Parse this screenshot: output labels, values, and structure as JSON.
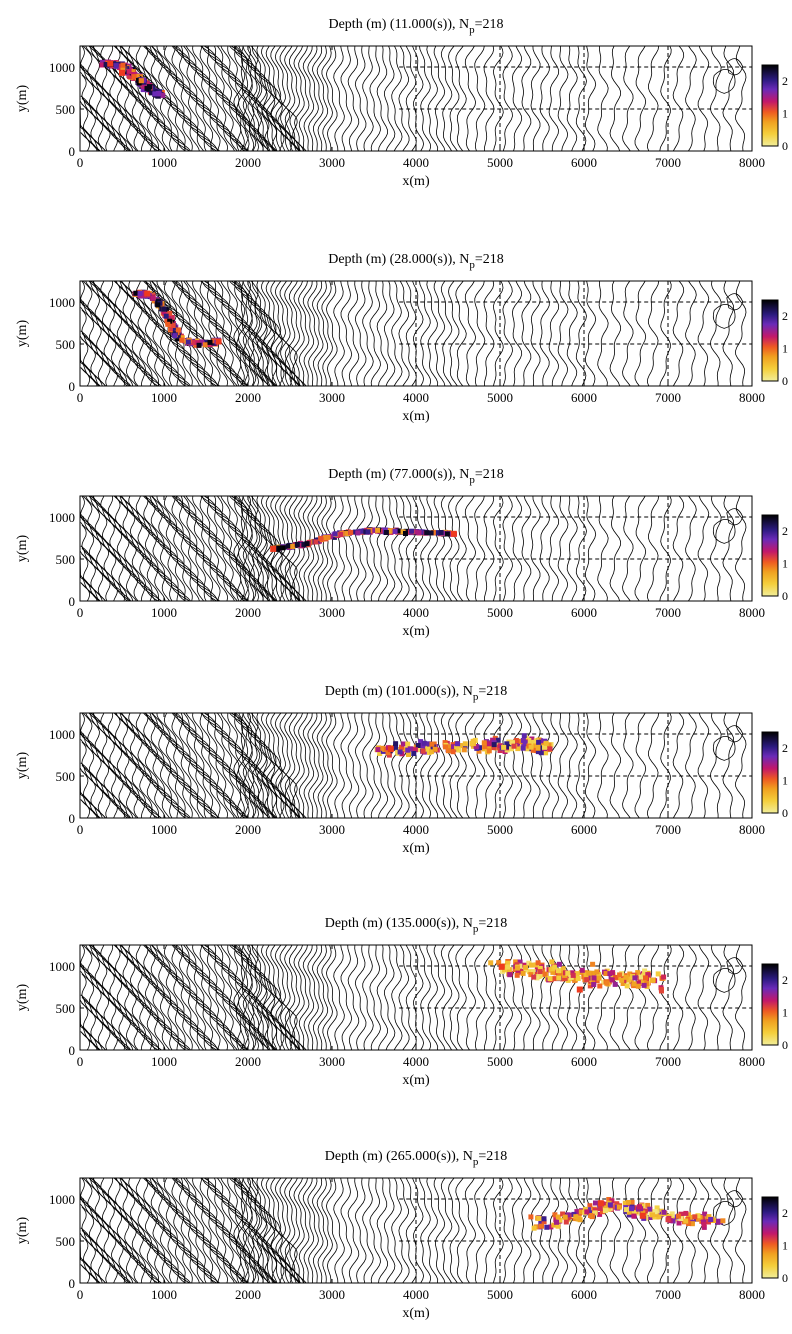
{
  "figure": {
    "title_prefix": "Depth (m) (",
    "title_mid": "), N",
    "title_sub": "p",
    "title_suffix": "=218"
  },
  "chart_data": [
    {
      "type": "scatter",
      "title": "Depth (m) (11.000(s)), Np=218",
      "time": "11.000(s)",
      "xlabel": "x(m)",
      "ylabel": "y(m)",
      "xlim": [
        0,
        8000
      ],
      "ylim": [
        0,
        1250
      ],
      "xticks": [
        0,
        1000,
        2000,
        3000,
        4000,
        5000,
        6000,
        7000,
        8000
      ],
      "yticks": [
        0,
        500,
        1000
      ],
      "grid": "dashed",
      "colorbar": {
        "ticks": [
          0,
          1,
          2
        ],
        "range": [
          0,
          2.5
        ],
        "placement": "right"
      },
      "particles": {
        "count": 218,
        "spread": 50,
        "depth_range": [
          0.8,
          2.5
        ],
        "path": [
          [
            300,
            1040
          ],
          [
            500,
            1020
          ],
          [
            650,
            900
          ],
          [
            800,
            760
          ],
          [
            950,
            660
          ]
        ],
        "hotspots": [
          [
            500,
            930
          ],
          [
            360,
            1040
          ]
        ]
      }
    },
    {
      "type": "scatter",
      "title": "Depth (m) (28.000(s)), Np=218",
      "time": "28.000(s)",
      "xlabel": "x(m)",
      "ylabel": "y(m)",
      "xlim": [
        0,
        8000
      ],
      "ylim": [
        0,
        1250
      ],
      "xticks": [
        0,
        1000,
        2000,
        3000,
        4000,
        5000,
        6000,
        7000,
        8000
      ],
      "yticks": [
        0,
        500,
        1000
      ],
      "grid": "dashed",
      "colorbar": {
        "ticks": [
          0,
          1,
          2
        ],
        "range": [
          0,
          2.5
        ],
        "placement": "right"
      },
      "particles": {
        "count": 218,
        "spread": 40,
        "depth_range": [
          0.6,
          2.5
        ],
        "path": [
          [
            650,
            1100
          ],
          [
            850,
            1080
          ],
          [
            1000,
            900
          ],
          [
            1100,
            700
          ],
          [
            1200,
            550
          ],
          [
            1400,
            500
          ],
          [
            1650,
            520
          ]
        ],
        "hotspots": [
          [
            800,
            1100
          ],
          [
            1650,
            530
          ]
        ]
      }
    },
    {
      "type": "scatter",
      "title": "Depth (m) (77.000(s)), Np=218",
      "time": "77.000(s)",
      "xlabel": "x(m)",
      "ylabel": "y(m)",
      "xlim": [
        0,
        8000
      ],
      "ylim": [
        0,
        1250
      ],
      "xticks": [
        0,
        1000,
        2000,
        3000,
        4000,
        5000,
        6000,
        7000,
        8000
      ],
      "yticks": [
        0,
        500,
        1000
      ],
      "grid": "dashed",
      "colorbar": {
        "ticks": [
          0,
          1,
          2
        ],
        "range": [
          0,
          2.5
        ],
        "placement": "right"
      },
      "particles": {
        "count": 218,
        "spread": 25,
        "depth_range": [
          0.6,
          2.5
        ],
        "path": [
          [
            2300,
            620
          ],
          [
            2700,
            680
          ],
          [
            3100,
            800
          ],
          [
            3500,
            840
          ],
          [
            4000,
            820
          ],
          [
            4450,
            800
          ]
        ],
        "hotspots": [
          [
            2300,
            620
          ],
          [
            4450,
            800
          ]
        ]
      }
    },
    {
      "type": "scatter",
      "title": "Depth (m) (101.000(s)), Np=218",
      "time": "101.000(s)",
      "xlabel": "x(m)",
      "ylabel": "y(m)",
      "xlim": [
        0,
        8000
      ],
      "ylim": [
        0,
        1250
      ],
      "xticks": [
        0,
        1000,
        2000,
        3000,
        4000,
        5000,
        6000,
        7000,
        8000
      ],
      "yticks": [
        0,
        500,
        1000
      ],
      "grid": "dashed",
      "colorbar": {
        "ticks": [
          0,
          1,
          2
        ],
        "range": [
          0,
          2.5
        ],
        "placement": "right"
      },
      "particles": {
        "count": 218,
        "spread": 110,
        "depth_range": [
          0.2,
          2.2
        ],
        "path": [
          [
            3600,
            820
          ],
          [
            4200,
            830
          ],
          [
            4800,
            860
          ],
          [
            5300,
            880
          ],
          [
            5600,
            850
          ]
        ],
        "hotspots": [
          [
            3700,
            820
          ]
        ]
      }
    },
    {
      "type": "scatter",
      "title": "Depth (m) (135.000(s)), Np=218",
      "time": "135.000(s)",
      "xlabel": "x(m)",
      "ylabel": "y(m)",
      "xlim": [
        0,
        8000
      ],
      "ylim": [
        0,
        1250
      ],
      "xticks": [
        0,
        1000,
        2000,
        3000,
        4000,
        5000,
        6000,
        7000,
        8000
      ],
      "yticks": [
        0,
        500,
        1000
      ],
      "grid": "dashed",
      "colorbar": {
        "ticks": [
          0,
          1,
          2
        ],
        "range": [
          0,
          2.5
        ],
        "placement": "right"
      },
      "particles": {
        "count": 218,
        "spread": 150,
        "depth_range": [
          0.1,
          1.6
        ],
        "path": [
          [
            5000,
            1000
          ],
          [
            5500,
            930
          ],
          [
            6000,
            880
          ],
          [
            6500,
            850
          ],
          [
            6900,
            820
          ]
        ],
        "hotspots": [
          [
            5020,
            990
          ],
          [
            5950,
            720
          ]
        ]
      }
    },
    {
      "type": "scatter",
      "title": "Depth (m) (265.000(s)), Np=218",
      "time": "265.000(s)",
      "xlabel": "x(m)",
      "ylabel": "y(m)",
      "xlim": [
        0,
        8000
      ],
      "ylim": [
        0,
        1250
      ],
      "xticks": [
        0,
        1000,
        2000,
        3000,
        4000,
        5000,
        6000,
        7000,
        8000
      ],
      "yticks": [
        0,
        500,
        1000
      ],
      "grid": "dashed",
      "colorbar": {
        "ticks": [
          0,
          1,
          2
        ],
        "range": [
          0,
          2.5
        ],
        "placement": "right"
      },
      "particles": {
        "count": 218,
        "spread": 120,
        "depth_range": [
          0.1,
          2.0
        ],
        "path": [
          [
            5400,
            700
          ],
          [
            5900,
            800
          ],
          [
            6300,
            920
          ],
          [
            6700,
            860
          ],
          [
            7100,
            780
          ],
          [
            7600,
            760
          ]
        ],
        "hotspots": [
          [
            6200,
            950
          ],
          [
            6700,
            800
          ]
        ]
      }
    }
  ]
}
